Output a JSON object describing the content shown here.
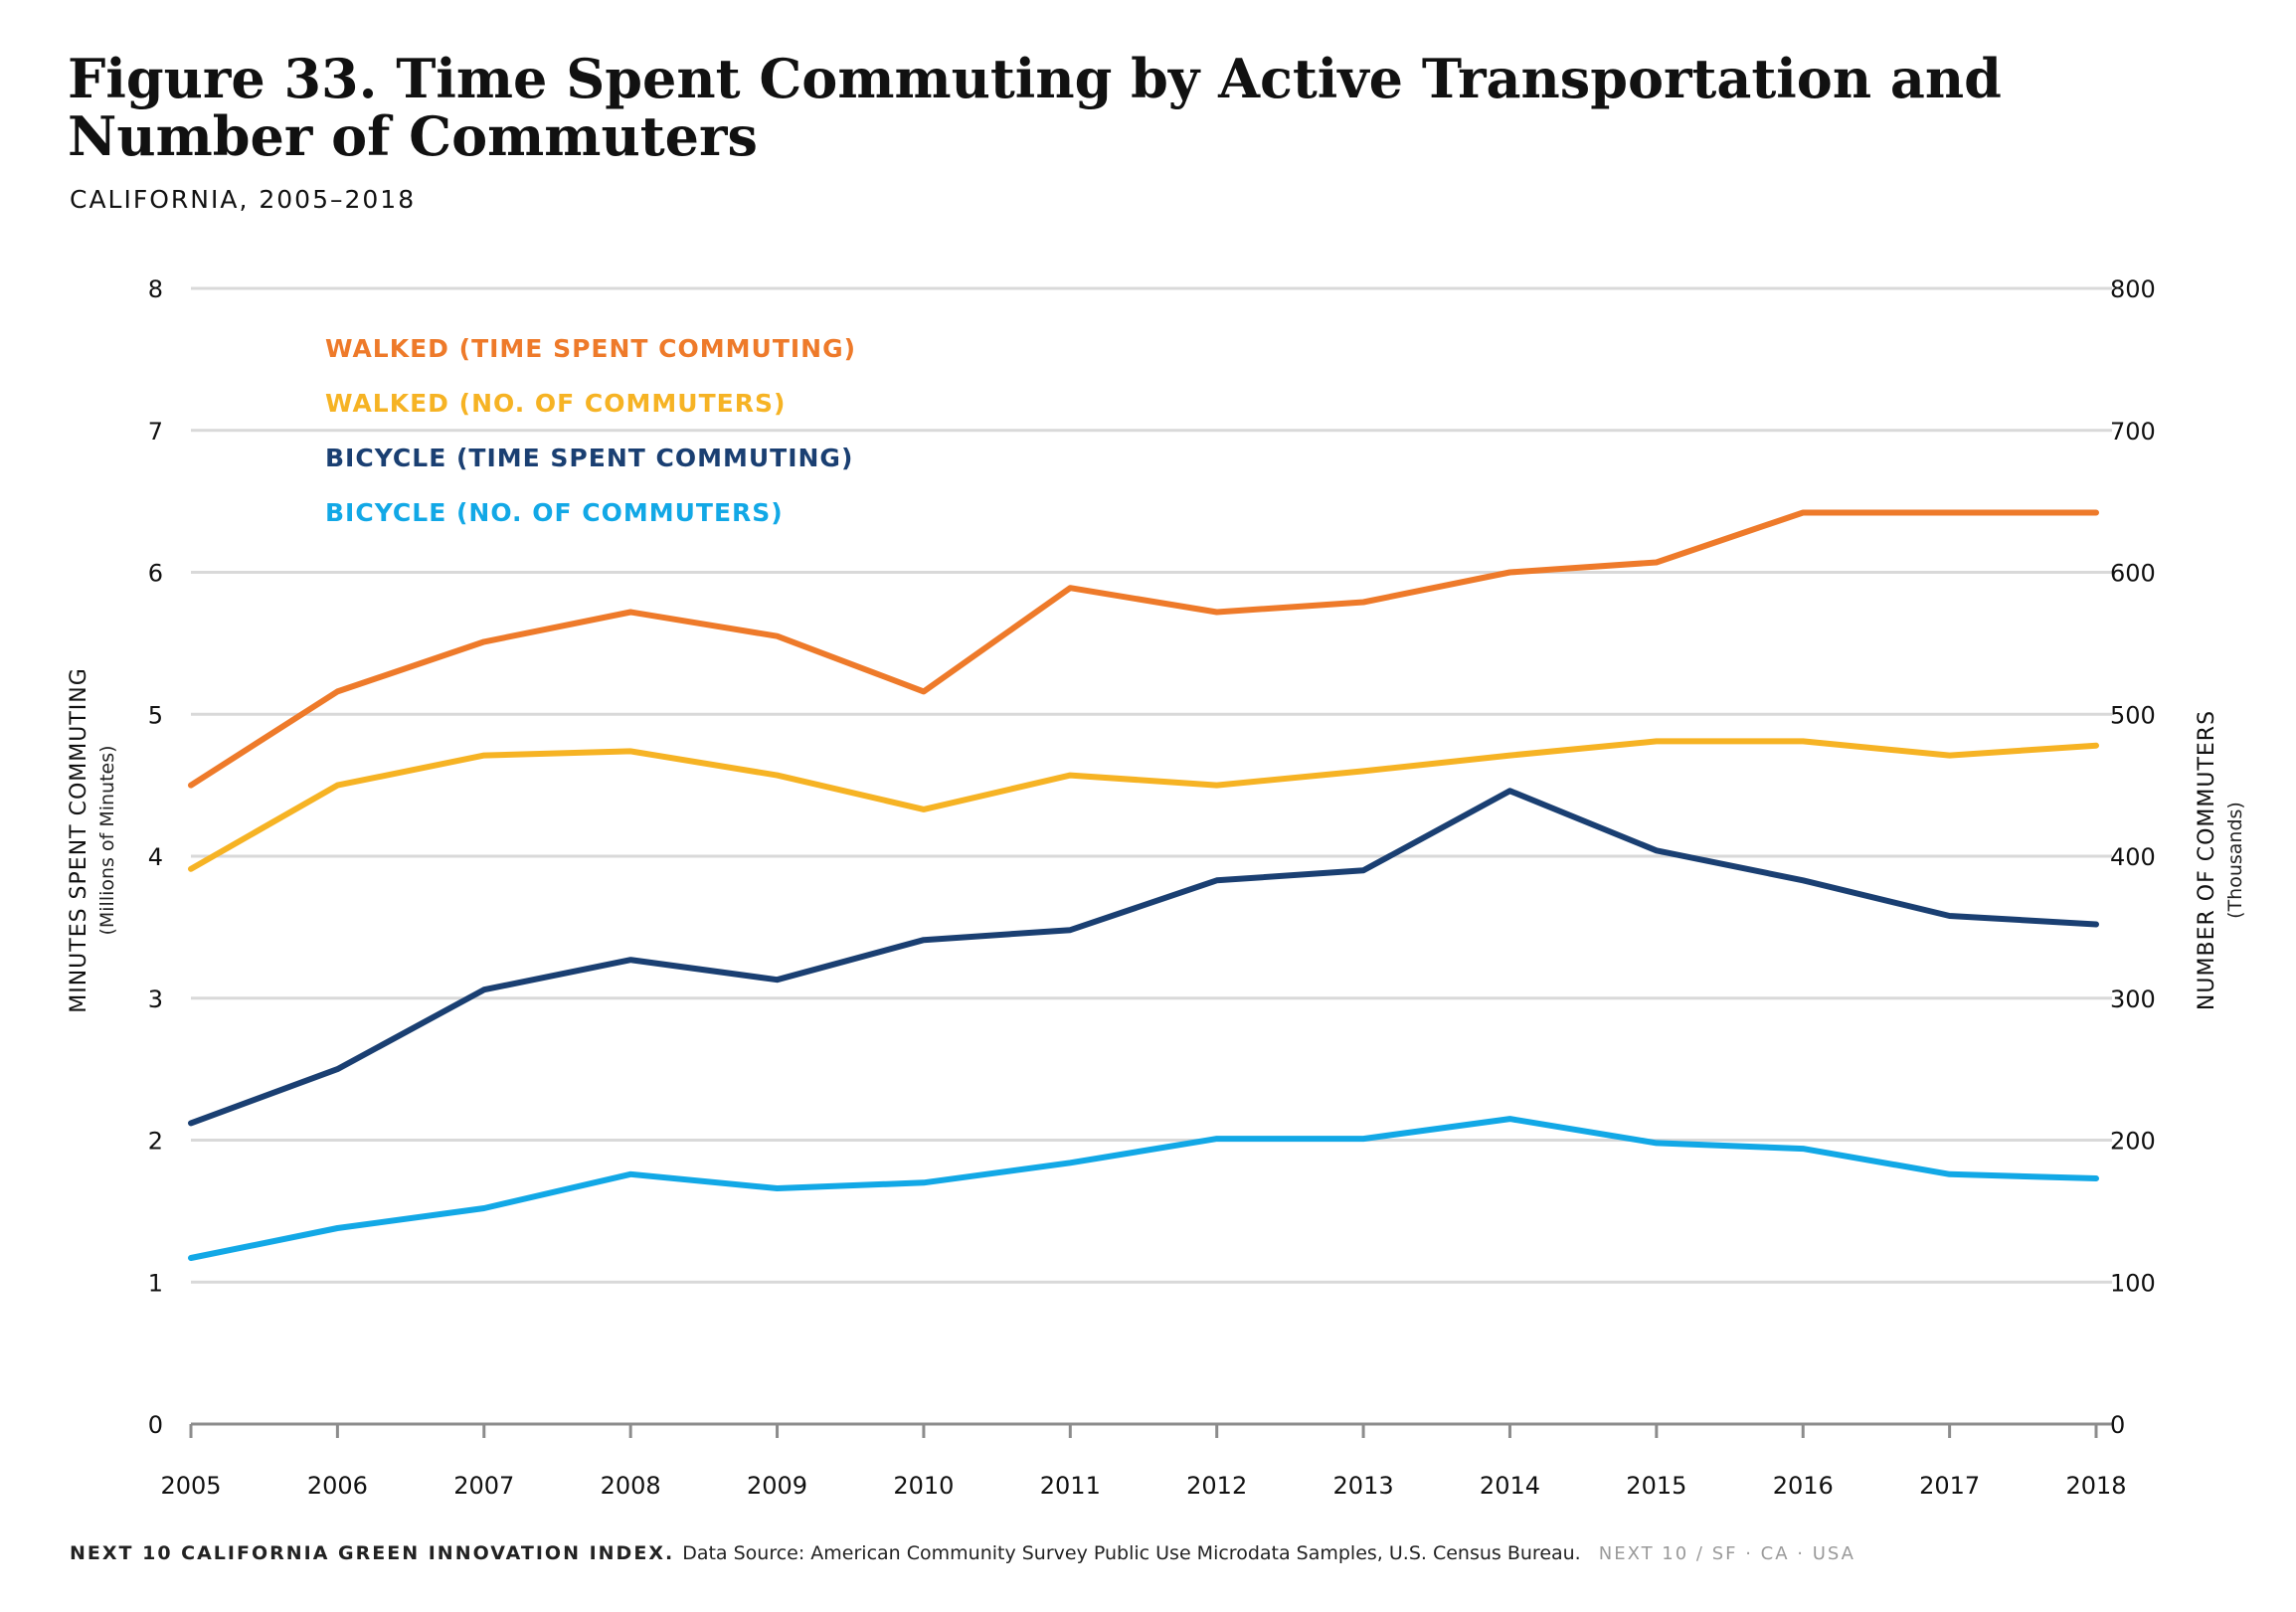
{
  "title": "Figure 33. Time Spent Commuting by Active Transportation and Number of Commuters",
  "subtitle": "CALIFORNIA, 2005–2018",
  "footer": {
    "brand": "NEXT 10 CALIFORNIA GREEN INNOVATION INDEX.",
    "source": "Data Source: American Community Survey Public Use Microdata Samples, U.S. Census Bureau.",
    "tag": "NEXT 10 / SF · CA · USA"
  },
  "colors": {
    "walked_time": "#ee7a2a",
    "walked_count": "#f6b324",
    "bicycle_time": "#1a3f72",
    "bicycle_count": "#12a8e6",
    "grid": "#d9d9d9",
    "axis": "#8c8c8c"
  },
  "chart_data": {
    "type": "line",
    "x": [
      "2005",
      "2006",
      "2007",
      "2008",
      "2009",
      "2010",
      "2011",
      "2012",
      "2013",
      "2014",
      "2015",
      "2016",
      "2017",
      "2018"
    ],
    "y_left": {
      "label": "MINUTES SPENT COMMUTING",
      "sublabel": "(Millions of Minutes)",
      "lim": [
        0,
        8
      ],
      "ticks": [
        0,
        1,
        2,
        3,
        4,
        5,
        6,
        7,
        8
      ]
    },
    "y_right": {
      "label": "NUMBER OF COMMUTERS",
      "sublabel": "(Thousands)",
      "lim": [
        0,
        800
      ],
      "ticks": [
        0,
        100,
        200,
        300,
        400,
        500,
        600,
        700,
        800
      ]
    },
    "grid": true,
    "legend_position": "top-left",
    "series": [
      {
        "name": "WALKED (TIME SPENT COMMUTING)",
        "axis": "left",
        "color_key": "walked_time",
        "values": [
          4.5,
          5.16,
          5.51,
          5.72,
          5.55,
          5.16,
          5.89,
          5.72,
          5.79,
          6.0,
          6.07,
          6.42,
          6.42,
          6.42
        ]
      },
      {
        "name": "WALKED (NO. OF COMMUTERS)",
        "axis": "right",
        "color_key": "walked_count",
        "values": [
          391,
          450,
          471,
          474,
          457,
          433,
          457,
          450,
          460,
          471,
          481,
          481,
          471,
          478
        ]
      },
      {
        "name": "BICYCLE (TIME SPENT COMMUTING)",
        "axis": "left",
        "color_key": "bicycle_time",
        "values": [
          2.12,
          2.5,
          3.06,
          3.27,
          3.13,
          3.41,
          3.48,
          3.83,
          3.9,
          4.46,
          4.04,
          3.83,
          3.58,
          3.52
        ]
      },
      {
        "name": "BICYCLE (NO. OF COMMUTERS)",
        "axis": "right",
        "color_key": "bicycle_count",
        "values": [
          117,
          138,
          152,
          176,
          166,
          170,
          184,
          201,
          201,
          215,
          198,
          194,
          176,
          173
        ]
      }
    ]
  }
}
